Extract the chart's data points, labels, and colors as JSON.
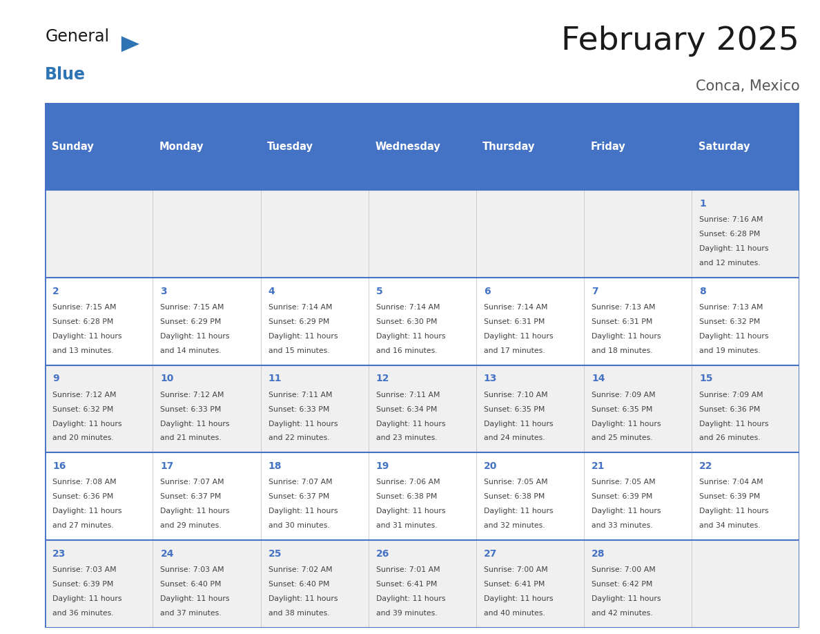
{
  "title": "February 2025",
  "subtitle": "Conca, Mexico",
  "days_of_week": [
    "Sunday",
    "Monday",
    "Tuesday",
    "Wednesday",
    "Thursday",
    "Friday",
    "Saturday"
  ],
  "header_bg": "#4472C4",
  "header_text": "#FFFFFF",
  "cell_bg_light": "#F0F0F0",
  "cell_bg_white": "#FFFFFF",
  "border_color": "#4472C4",
  "day_num_color": "#4472C4",
  "cell_text_color": "#404040",
  "title_color": "#1a1a1a",
  "subtitle_color": "#555555",
  "logo_general_color": "#1a1a1a",
  "logo_blue_color": "#2E74B5",
  "calendar_data": [
    [
      null,
      null,
      null,
      null,
      null,
      null,
      {
        "day": 1,
        "sunrise": "7:16 AM",
        "sunset": "6:28 PM",
        "daylight": "11 hours and 12 minutes."
      }
    ],
    [
      {
        "day": 2,
        "sunrise": "7:15 AM",
        "sunset": "6:28 PM",
        "daylight": "11 hours and 13 minutes."
      },
      {
        "day": 3,
        "sunrise": "7:15 AM",
        "sunset": "6:29 PM",
        "daylight": "11 hours and 14 minutes."
      },
      {
        "day": 4,
        "sunrise": "7:14 AM",
        "sunset": "6:29 PM",
        "daylight": "11 hours and 15 minutes."
      },
      {
        "day": 5,
        "sunrise": "7:14 AM",
        "sunset": "6:30 PM",
        "daylight": "11 hours and 16 minutes."
      },
      {
        "day": 6,
        "sunrise": "7:14 AM",
        "sunset": "6:31 PM",
        "daylight": "11 hours and 17 minutes."
      },
      {
        "day": 7,
        "sunrise": "7:13 AM",
        "sunset": "6:31 PM",
        "daylight": "11 hours and 18 minutes."
      },
      {
        "day": 8,
        "sunrise": "7:13 AM",
        "sunset": "6:32 PM",
        "daylight": "11 hours and 19 minutes."
      }
    ],
    [
      {
        "day": 9,
        "sunrise": "7:12 AM",
        "sunset": "6:32 PM",
        "daylight": "11 hours and 20 minutes."
      },
      {
        "day": 10,
        "sunrise": "7:12 AM",
        "sunset": "6:33 PM",
        "daylight": "11 hours and 21 minutes."
      },
      {
        "day": 11,
        "sunrise": "7:11 AM",
        "sunset": "6:33 PM",
        "daylight": "11 hours and 22 minutes."
      },
      {
        "day": 12,
        "sunrise": "7:11 AM",
        "sunset": "6:34 PM",
        "daylight": "11 hours and 23 minutes."
      },
      {
        "day": 13,
        "sunrise": "7:10 AM",
        "sunset": "6:35 PM",
        "daylight": "11 hours and 24 minutes."
      },
      {
        "day": 14,
        "sunrise": "7:09 AM",
        "sunset": "6:35 PM",
        "daylight": "11 hours and 25 minutes."
      },
      {
        "day": 15,
        "sunrise": "7:09 AM",
        "sunset": "6:36 PM",
        "daylight": "11 hours and 26 minutes."
      }
    ],
    [
      {
        "day": 16,
        "sunrise": "7:08 AM",
        "sunset": "6:36 PM",
        "daylight": "11 hours and 27 minutes."
      },
      {
        "day": 17,
        "sunrise": "7:07 AM",
        "sunset": "6:37 PM",
        "daylight": "11 hours and 29 minutes."
      },
      {
        "day": 18,
        "sunrise": "7:07 AM",
        "sunset": "6:37 PM",
        "daylight": "11 hours and 30 minutes."
      },
      {
        "day": 19,
        "sunrise": "7:06 AM",
        "sunset": "6:38 PM",
        "daylight": "11 hours and 31 minutes."
      },
      {
        "day": 20,
        "sunrise": "7:05 AM",
        "sunset": "6:38 PM",
        "daylight": "11 hours and 32 minutes."
      },
      {
        "day": 21,
        "sunrise": "7:05 AM",
        "sunset": "6:39 PM",
        "daylight": "11 hours and 33 minutes."
      },
      {
        "day": 22,
        "sunrise": "7:04 AM",
        "sunset": "6:39 PM",
        "daylight": "11 hours and 34 minutes."
      }
    ],
    [
      {
        "day": 23,
        "sunrise": "7:03 AM",
        "sunset": "6:39 PM",
        "daylight": "11 hours and 36 minutes."
      },
      {
        "day": 24,
        "sunrise": "7:03 AM",
        "sunset": "6:40 PM",
        "daylight": "11 hours and 37 minutes."
      },
      {
        "day": 25,
        "sunrise": "7:02 AM",
        "sunset": "6:40 PM",
        "daylight": "11 hours and 38 minutes."
      },
      {
        "day": 26,
        "sunrise": "7:01 AM",
        "sunset": "6:41 PM",
        "daylight": "11 hours and 39 minutes."
      },
      {
        "day": 27,
        "sunrise": "7:00 AM",
        "sunset": "6:41 PM",
        "daylight": "11 hours and 40 minutes."
      },
      {
        "day": 28,
        "sunrise": "7:00 AM",
        "sunset": "6:42 PM",
        "daylight": "11 hours and 42 minutes."
      },
      null
    ]
  ]
}
